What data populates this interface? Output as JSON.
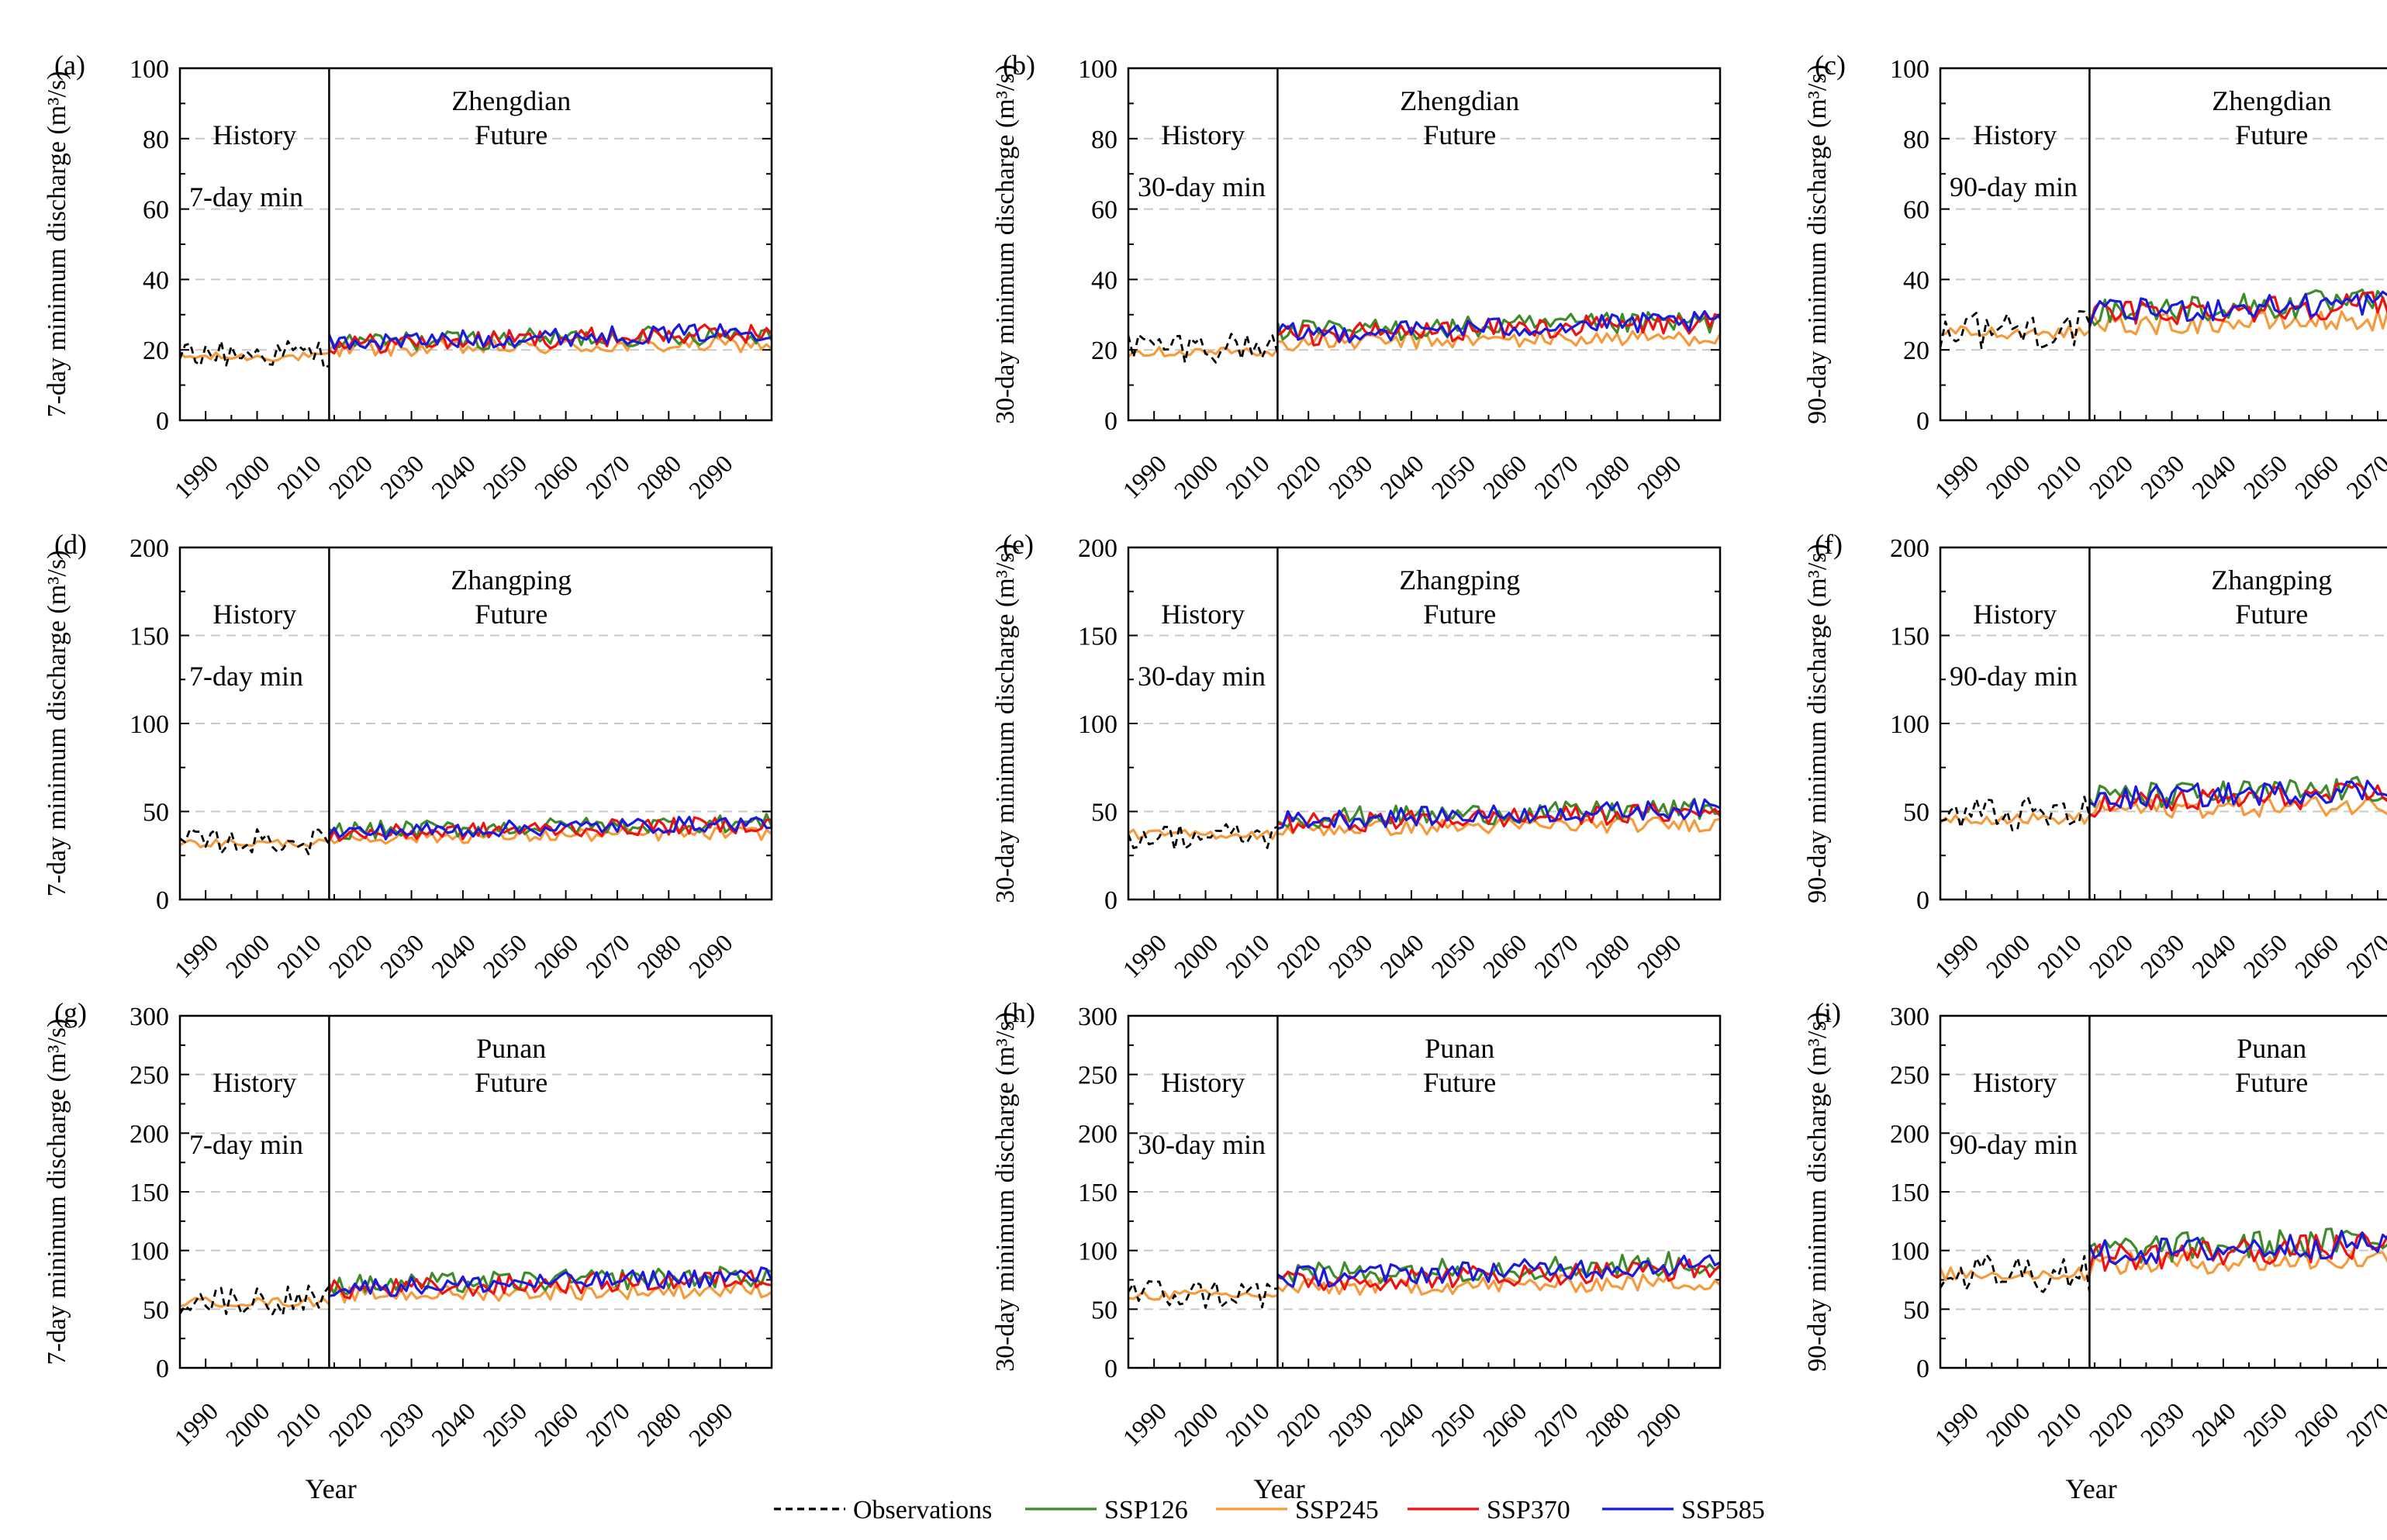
{
  "figure": {
    "xlabel": "Year",
    "x_tick_labels": [
      "1990",
      "2000",
      "2010",
      "2020",
      "2030",
      "2040",
      "2050",
      "2060",
      "2070",
      "2080",
      "2090"
    ],
    "history_label": "History",
    "future_label": "Future",
    "divider_year": 2014,
    "x_range": [
      1985,
      2100
    ]
  },
  "legend": [
    {
      "key": "obs",
      "label": "Observations",
      "color": "#000000",
      "dashed": true
    },
    {
      "key": "ssp126",
      "label": "SSP126",
      "color": "#3d8b2a",
      "dashed": false
    },
    {
      "key": "ssp245",
      "label": "SSP245",
      "color": "#f59a3d",
      "dashed": false
    },
    {
      "key": "ssp370",
      "label": "SSP370",
      "color": "#ee1111",
      "dashed": false
    },
    {
      "key": "ssp585",
      "label": "SSP585",
      "color": "#1a1adc",
      "dashed": false
    }
  ],
  "chart_data": [
    {
      "panel": "(a)",
      "type": "line",
      "station": "Zhengdian",
      "window": "7-day min",
      "ylabel": "7-day minimum discharge (m³/s)",
      "ylim": [
        0,
        100
      ],
      "yticks": [
        0,
        20,
        40,
        60,
        80,
        100
      ],
      "series_level": {
        "obs": 19,
        "hist_model": 18,
        "ssp126": 22,
        "ssp245": 20,
        "ssp370": 21.5,
        "ssp585": 22
      }
    },
    {
      "panel": "(b)",
      "type": "line",
      "station": "Zhengdian",
      "window": "30-day min",
      "ylabel": "30-day minimum discharge (m³/s)",
      "ylim": [
        0,
        100
      ],
      "yticks": [
        0,
        20,
        40,
        60,
        80,
        100
      ],
      "series_level": {
        "obs": 21,
        "hist_model": 19.5,
        "ssp126": 25,
        "ssp245": 22,
        "ssp370": 24,
        "ssp585": 24.5
      }
    },
    {
      "panel": "(c)",
      "type": "line",
      "station": "Zhengdian",
      "window": "90-day min",
      "ylabel": "90-day minimum discharge (m³/s)",
      "ylim": [
        0,
        100
      ],
      "yticks": [
        0,
        20,
        40,
        60,
        80,
        100
      ],
      "series_level": {
        "obs": 26,
        "hist_model": 25,
        "ssp126": 31,
        "ssp245": 27,
        "ssp370": 30,
        "ssp585": 30.5
      }
    },
    {
      "panel": "(d)",
      "type": "line",
      "station": "Zhangping",
      "window": "7-day min",
      "ylabel": "7-day minimum discharge (m³/s)",
      "ylim": [
        0,
        200
      ],
      "yticks": [
        0,
        50,
        100,
        150,
        200
      ],
      "series_level": {
        "obs": 33,
        "hist_model": 32,
        "ssp126": 39,
        "ssp245": 35,
        "ssp370": 37,
        "ssp585": 38
      }
    },
    {
      "panel": "(e)",
      "type": "line",
      "station": "Zhangping",
      "window": "30-day min",
      "ylabel": "30-day minimum discharge (m³/s)",
      "ylim": [
        0,
        200
      ],
      "yticks": [
        0,
        50,
        100,
        150,
        200
      ],
      "series_level": {
        "obs": 36,
        "hist_model": 37,
        "ssp126": 46,
        "ssp245": 40,
        "ssp370": 43,
        "ssp585": 45
      }
    },
    {
      "panel": "(f)",
      "type": "line",
      "station": "Zhangping",
      "window": "90-day min",
      "ylabel": "90-day minimum discharge (m³/s)",
      "ylim": [
        0,
        200
      ],
      "yticks": [
        0,
        50,
        100,
        150,
        200
      ],
      "series_level": {
        "obs": 48,
        "hist_model": 46,
        "ssp126": 58,
        "ssp245": 51,
        "ssp370": 54,
        "ssp585": 57
      }
    },
    {
      "panel": "(g)",
      "type": "line",
      "station": "Punan",
      "window": "7-day min",
      "ylabel": "7-day minimum discharge (m³/s)",
      "ylim": [
        0,
        300
      ],
      "yticks": [
        0,
        50,
        100,
        150,
        200,
        250,
        300
      ],
      "series_level": {
        "obs": 58,
        "hist_model": 56,
        "ssp126": 70,
        "ssp245": 62,
        "ssp370": 66,
        "ssp585": 68
      }
    },
    {
      "panel": "(h)",
      "type": "line",
      "station": "Punan",
      "window": "30-day min",
      "ylabel": "30-day minimum discharge (m³/s)",
      "ylim": [
        0,
        300
      ],
      "yticks": [
        0,
        50,
        100,
        150,
        200,
        250,
        300
      ],
      "series_level": {
        "obs": 63,
        "hist_model": 62,
        "ssp126": 80,
        "ssp245": 68,
        "ssp370": 73,
        "ssp585": 77
      }
    },
    {
      "panel": "(i)",
      "type": "line",
      "station": "Punan",
      "window": "90-day min",
      "ylabel": "90-day minimum discharge (m³/s)",
      "ylim": [
        0,
        300
      ],
      "yticks": [
        0,
        50,
        100,
        150,
        200,
        250,
        300
      ],
      "series_level": {
        "obs": 82,
        "hist_model": 80,
        "ssp126": 100,
        "ssp245": 88,
        "ssp370": 94,
        "ssp585": 97
      }
    }
  ]
}
